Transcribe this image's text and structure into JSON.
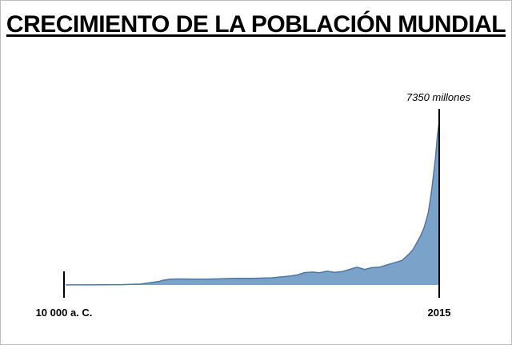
{
  "chart_data": {
    "type": "area",
    "title": "CRECIMIENTO DE LA POBLACIÓN MUNDIAL",
    "xlabel": "",
    "ylabel": "",
    "x_tick_labels": [
      "10 000 a. C.",
      "2015"
    ],
    "annotations": [
      "7350 millones"
    ],
    "ylim": [
      0,
      7350
    ],
    "grid": false,
    "color": "#7ba2c8",
    "line_color": "#4d77a6",
    "series": [
      {
        "progress": [
          0,
          0.05,
          0.1,
          0.15,
          0.2,
          0.25,
          0.26,
          0.28,
          0.3,
          0.35,
          0.4,
          0.45,
          0.5,
          0.55,
          0.6,
          0.62,
          0.64,
          0.66,
          0.68,
          0.7,
          0.72,
          0.74,
          0.76,
          0.78,
          0.8,
          0.82,
          0.84,
          0.86,
          0.88,
          0.9,
          0.91,
          0.92,
          0.93,
          0.94,
          0.95,
          0.96,
          0.97,
          0.975,
          0.98,
          0.985,
          0.99,
          0.995,
          1.0
        ],
        "values": [
          4,
          5,
          8,
          15,
          40,
          160,
          210,
          260,
          270,
          260,
          270,
          300,
          300,
          320,
          400,
          450,
          560,
          580,
          550,
          620,
          570,
          600,
          700,
          800,
          700,
          780,
          800,
          900,
          1000,
          1100,
          1250,
          1400,
          1600,
          1900,
          2200,
          2600,
          3200,
          3700,
          4300,
          5000,
          5700,
          6700,
          7350
        ]
      }
    ]
  }
}
